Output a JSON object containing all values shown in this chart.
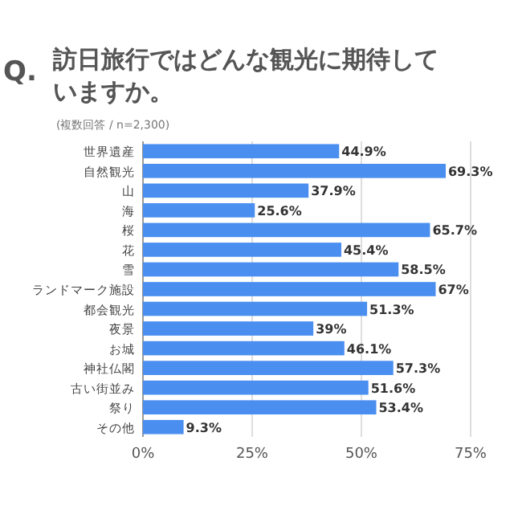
{
  "chart_data": {
    "type": "bar",
    "orientation": "horizontal",
    "title": "訪日旅行ではどんな観光に期待していますか。",
    "subtitle": "(複数回答 / n=2,300)",
    "annotations": [
      "Q."
    ],
    "categories": [
      "世界遺産",
      "自然観光",
      "山",
      "海",
      "桜",
      "花",
      "雪",
      "ランドマーク施設",
      "都会観光",
      "夜景",
      "お城",
      "神社仏閣",
      "古い街並み",
      "祭り",
      "その他"
    ],
    "values": [
      44.9,
      69.3,
      37.9,
      25.6,
      65.7,
      45.4,
      58.5,
      67,
      51.3,
      39,
      46.1,
      57.3,
      51.6,
      53.4,
      9.3
    ],
    "value_labels": [
      "44.9%",
      "69.3%",
      "37.9%",
      "25.6%",
      "65.7%",
      "45.4%",
      "58.5%",
      "67%",
      "51.3%",
      "39%",
      "46.1%",
      "57.3%",
      "51.6%",
      "53.4%",
      "9.3%"
    ],
    "color": "#4a8ef0",
    "xlim": [
      0,
      75
    ],
    "xticks": [
      {
        "value": 0,
        "label": "0%"
      },
      {
        "value": 25,
        "label": "25%"
      },
      {
        "value": 50,
        "label": "50%"
      },
      {
        "value": 75,
        "label": "75%"
      }
    ],
    "grid": "x"
  }
}
